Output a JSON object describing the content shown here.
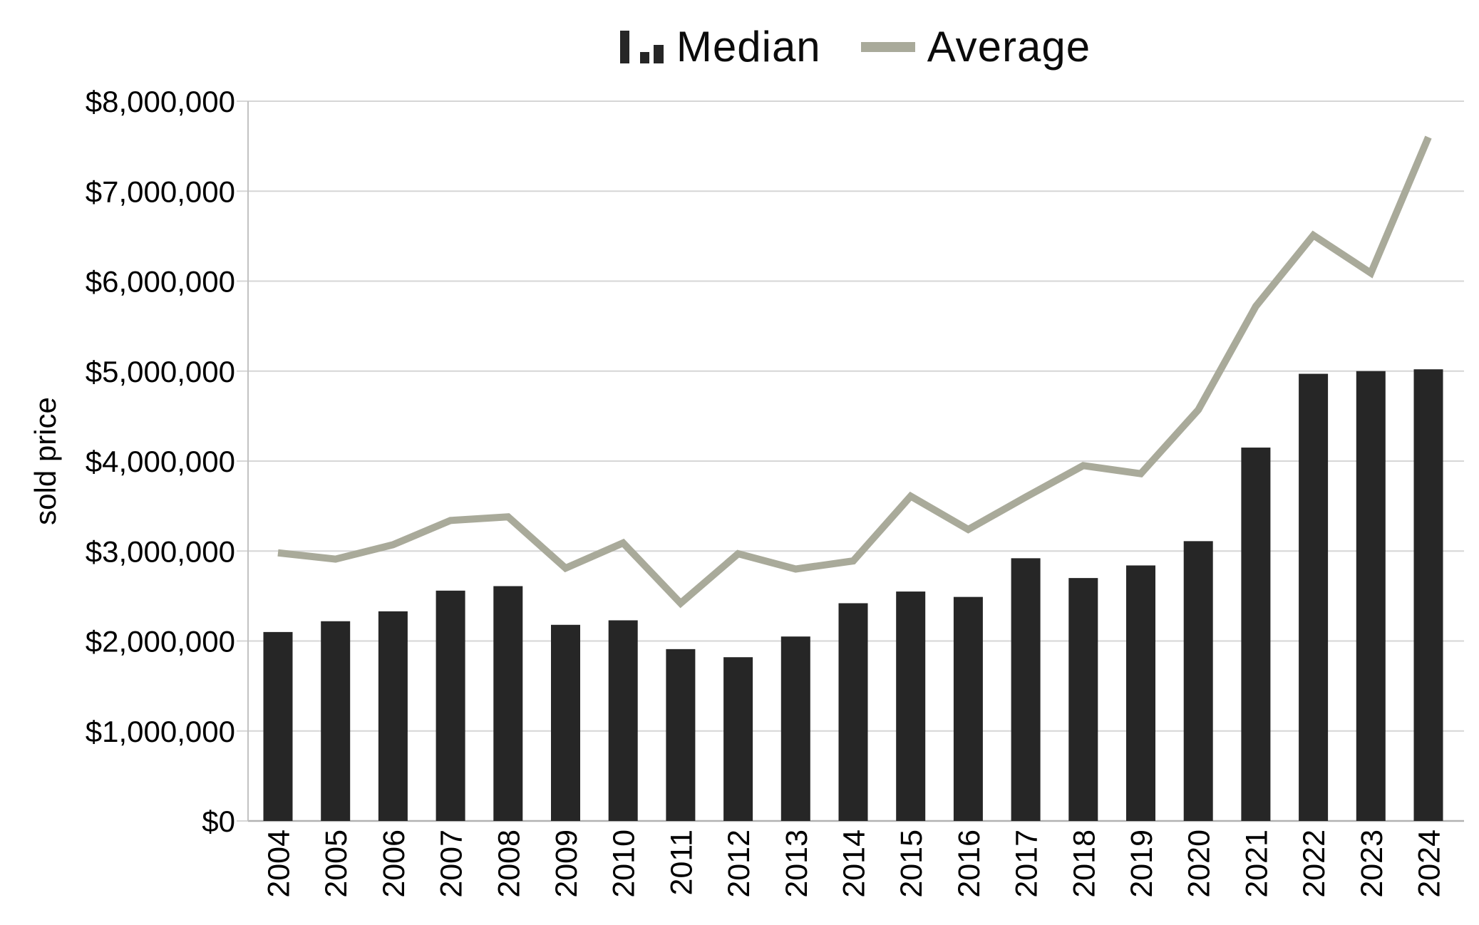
{
  "legend": {
    "median_label": "Median",
    "average_label": "Average"
  },
  "chart_data": {
    "type": "bar",
    "title": "",
    "categories": [
      "2004",
      "2005",
      "2006",
      "2007",
      "2008",
      "2009",
      "2010",
      "2011",
      "2012",
      "2013",
      "2014",
      "2015",
      "2016",
      "2017",
      "2018",
      "2019",
      "2020",
      "2021",
      "2022",
      "2023",
      "2024"
    ],
    "series": [
      {
        "name": "Median",
        "type": "bar",
        "color": "#262626",
        "values": [
          2100000,
          2220000,
          2330000,
          2560000,
          2610000,
          2180000,
          2230000,
          1910000,
          1820000,
          2050000,
          2420000,
          2550000,
          2490000,
          2920000,
          2700000,
          2840000,
          3110000,
          4150000,
          4970000,
          5000000,
          5020000
        ]
      },
      {
        "name": "Average",
        "type": "line",
        "color": "#a9aa9a",
        "values": [
          2980000,
          2910000,
          3070000,
          3340000,
          3380000,
          2810000,
          3090000,
          2420000,
          2970000,
          2800000,
          2890000,
          3610000,
          3240000,
          3600000,
          3950000,
          3860000,
          4570000,
          5720000,
          6510000,
          6090000,
          7600000
        ]
      }
    ],
    "xlabel": "",
    "ylabel": "sold price",
    "ylim": [
      0,
      8000000
    ],
    "ytick_step": 1000000,
    "ytick_labels": [
      "$0",
      "$1,000,000",
      "$2,000,000",
      "$3,000,000",
      "$4,000,000",
      "$5,000,000",
      "$6,000,000",
      "$7,000,000",
      "$8,000,000"
    ],
    "grid": true,
    "legend_position": "top-center",
    "grid_color": "#d6d6d6",
    "axis_color": "#c2c2c2",
    "baseline_color": "#b2b2b2",
    "text_color": "#000000"
  }
}
